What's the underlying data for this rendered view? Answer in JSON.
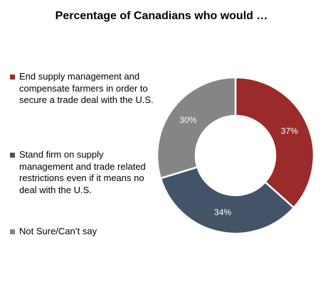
{
  "chart_data": {
    "type": "pie",
    "title": "Percentage of Canadians who would …",
    "categories": [
      "End supply management and compensate farmers in order to secure a trade deal with the U.S.",
      "Stand firm on supply management and trade related restrictions even if it means no deal with the U.S.",
      "Not Sure/Can’t say"
    ],
    "values": [
      37,
      34,
      30
    ],
    "value_labels": [
      "37%",
      "34%",
      "30%"
    ],
    "colors": [
      "#9b2a2a",
      "#435469",
      "#858585"
    ],
    "donut": true,
    "legend_position": "left",
    "start_angle": "top, clockwise"
  }
}
